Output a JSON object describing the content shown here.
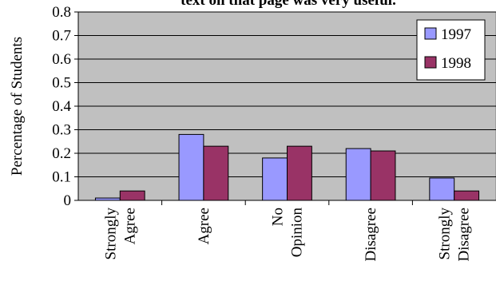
{
  "chart_data": {
    "type": "bar",
    "title": "text on that  page was very useful.",
    "xlabel": "",
    "ylabel": "Percentage of Students",
    "ylim": [
      0,
      0.8
    ],
    "yticks": [
      "0",
      "0.1",
      "0.2",
      "0.3",
      "0.4",
      "0.5",
      "0.6",
      "0.7",
      "0.8"
    ],
    "categories": [
      [
        "Strongly",
        "Agree"
      ],
      [
        "Agree"
      ],
      [
        "No",
        "Opinion"
      ],
      [
        "Disagree"
      ],
      [
        "Strongly",
        "Disagree"
      ]
    ],
    "series": [
      {
        "name": "1997",
        "color": "#9999FF",
        "values": [
          0.01,
          0.28,
          0.18,
          0.22,
          0.095
        ]
      },
      {
        "name": "1998",
        "color": "#993366",
        "values": [
          0.04,
          0.23,
          0.23,
          0.21,
          0.04
        ]
      }
    ],
    "plot_background": "#C0C0C0",
    "gridlines": true,
    "legend_position": "top-right"
  }
}
